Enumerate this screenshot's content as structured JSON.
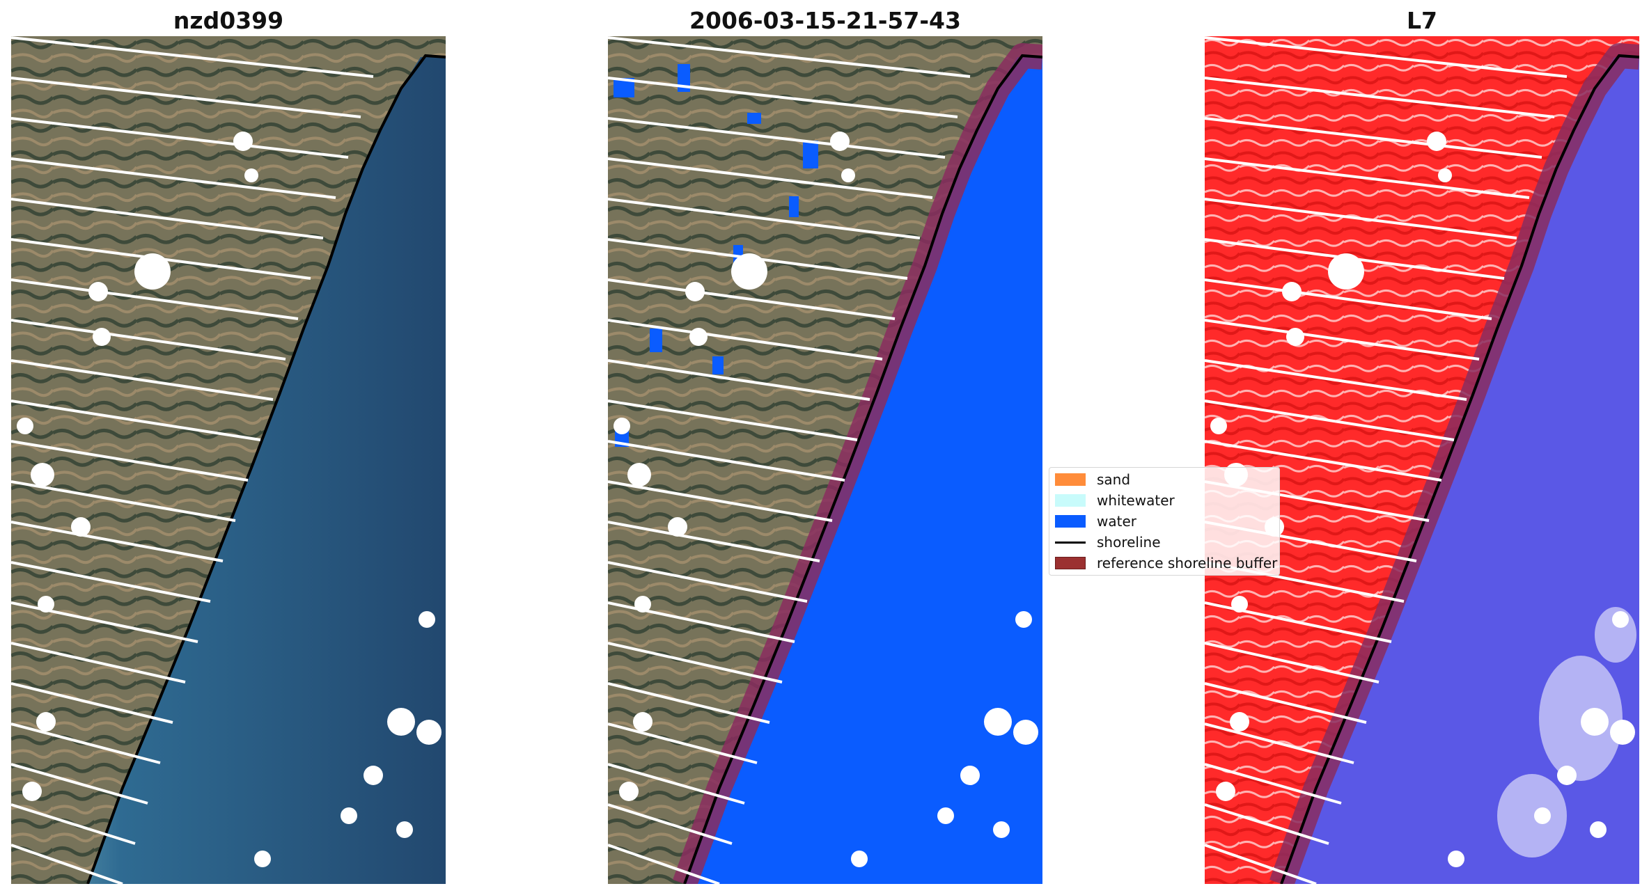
{
  "panels": [
    {
      "title": "nzd0399"
    },
    {
      "title": "2006-03-15-21-57-43"
    },
    {
      "title": "L7"
    }
  ],
  "legend": {
    "items": [
      {
        "label": "sand",
        "color": "#ff8c3a",
        "kind": "patch"
      },
      {
        "label": "whitewater",
        "color": "#c8fbfb",
        "kind": "patch"
      },
      {
        "label": "water",
        "color": "#0a5cff",
        "kind": "patch"
      },
      {
        "label": "shoreline",
        "color": "#000000",
        "kind": "line"
      },
      {
        "label": "reference shoreline buffer",
        "color": "#9b3030",
        "kind": "patch"
      }
    ]
  },
  "colors": {
    "land_rgb": "#6e6a4e",
    "sea_rgb": "#2c5e86",
    "water_class": "#0a5cff",
    "land_false": "#ff2a2a",
    "water_false": "#5a58e6",
    "buffer": "#8a2d5f",
    "slc_gap": "#ffffff",
    "cloud_mask": "#ffffff"
  }
}
